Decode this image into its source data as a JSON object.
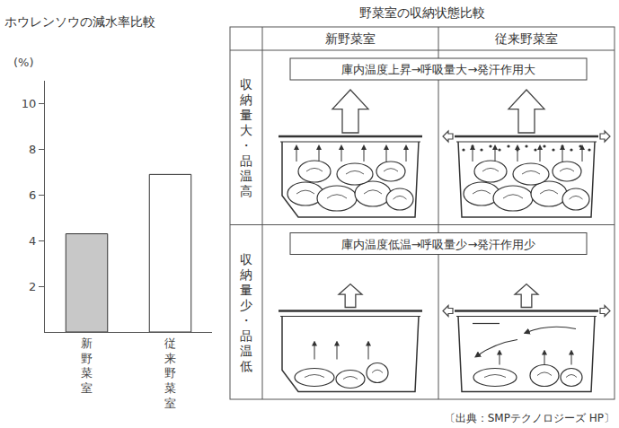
{
  "chart_data": {
    "type": "bar",
    "title": "ホウレンソウの減水率比較",
    "ylabel": "(%)",
    "categories": [
      "新野菜室",
      "従来野菜室"
    ],
    "values": [
      4.3,
      6.9
    ],
    "colors": [
      "#c8c8c8",
      "#ffffff"
    ],
    "ylim": [
      0,
      11
    ],
    "yticks": [
      2,
      4,
      6,
      8,
      10
    ],
    "grid": false
  },
  "diagram": {
    "title": "野菜室の収納状態比較",
    "columns": [
      "新野菜室",
      "従来野菜室"
    ],
    "rows": [
      {
        "label": "収納量大・品温高",
        "caption": "庫内温度上昇→呼吸量大→発汗作用大"
      },
      {
        "label": "収納量少・品温低",
        "caption": "庫内温度低温→呼吸量少→発汗作用少"
      }
    ]
  },
  "source": "〔出典：SMPテクノロジーズ HP〕"
}
